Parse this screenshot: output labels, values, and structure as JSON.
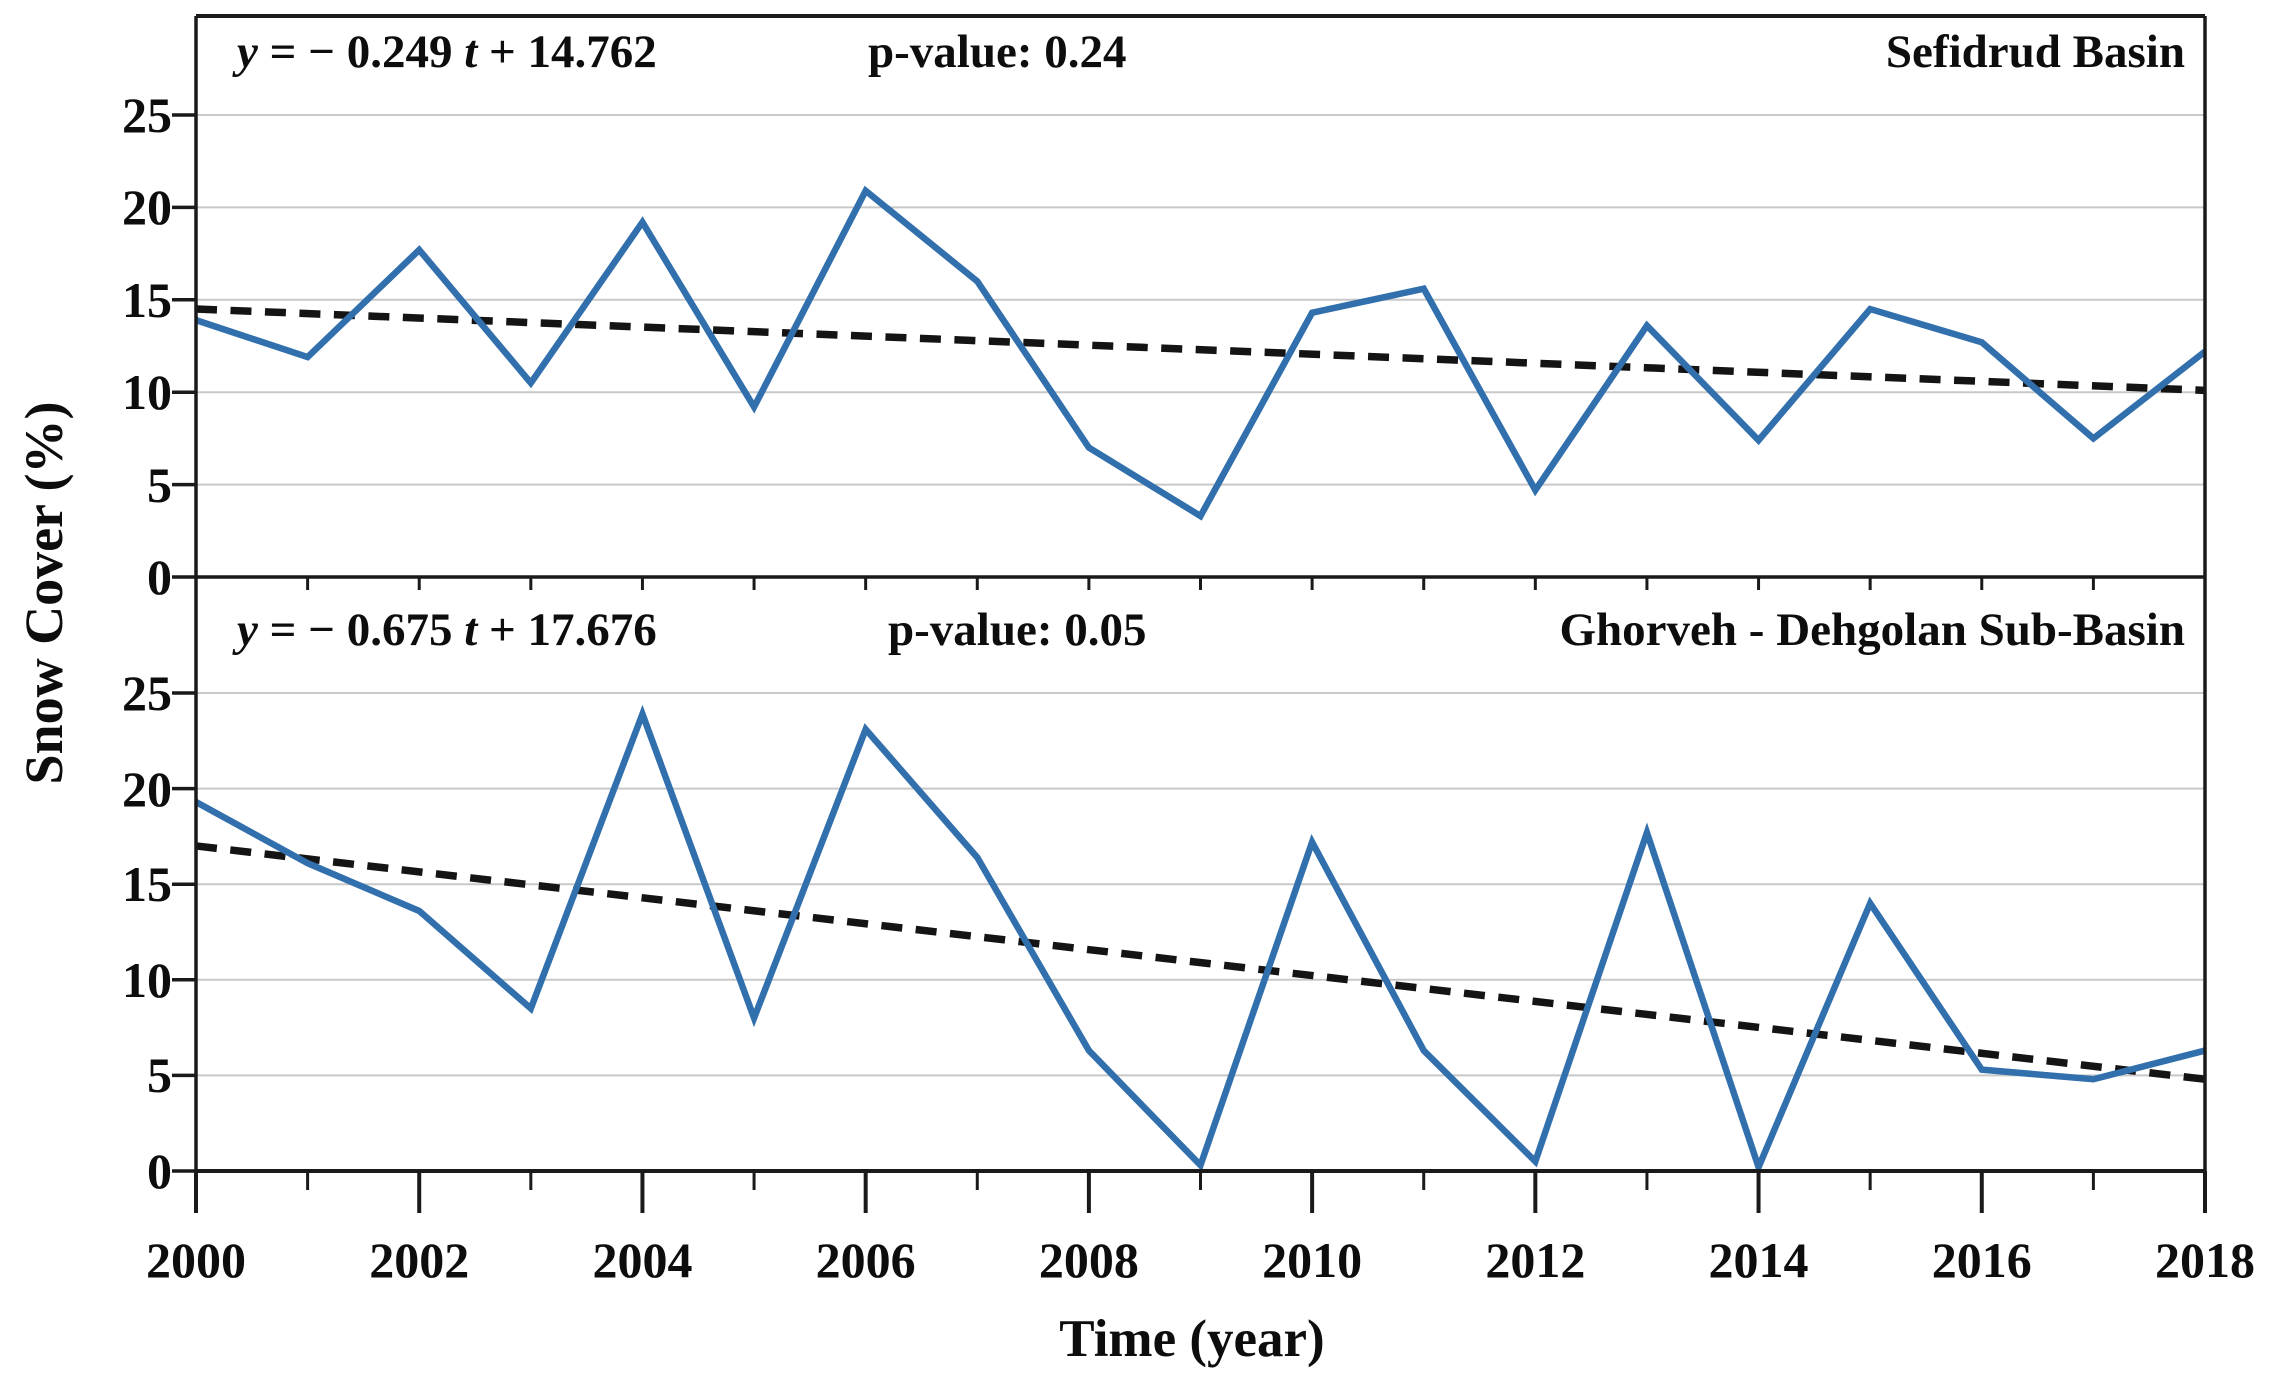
{
  "figure": {
    "ylabel": "Snow Cover (%)",
    "xlabel": "Time (year)",
    "colors": {
      "series": "#316fad",
      "trend": "#141414",
      "grid": "#c8c8c8",
      "axis": "#1a1a1a",
      "text": "#0d0d0d",
      "background": "#ffffff"
    }
  },
  "x_axis": {
    "range": [
      2000,
      2018
    ],
    "years": [
      2000,
      2001,
      2002,
      2003,
      2004,
      2005,
      2006,
      2007,
      2008,
      2009,
      2010,
      2011,
      2012,
      2013,
      2014,
      2015,
      2016,
      2017,
      2018
    ],
    "tick_labels": [
      2000,
      2002,
      2004,
      2006,
      2008,
      2010,
      2012,
      2014,
      2016,
      2018
    ]
  },
  "y_axis": {
    "ticks": [
      0,
      5,
      10,
      15,
      20,
      25
    ]
  },
  "chart_data": [
    {
      "type": "line",
      "title": "Sefidrud Basin",
      "equation_text": "y = − 0.249 t + 14.762",
      "equation": {
        "y": "y",
        "a": " = − 0.249 ",
        "t": "t",
        "b": " + 14.762"
      },
      "p_value_label": "p-value: 0.24",
      "p_value": 0.24,
      "slope": -0.249,
      "intercept": 14.762,
      "x": [
        2000,
        2001,
        2002,
        2003,
        2004,
        2005,
        2006,
        2007,
        2008,
        2009,
        2010,
        2011,
        2012,
        2013,
        2014,
        2015,
        2016,
        2017,
        2018
      ],
      "values": [
        13.9,
        11.9,
        17.7,
        10.5,
        19.2,
        9.2,
        20.9,
        16.0,
        7.0,
        3.3,
        14.3,
        15.6,
        4.7,
        13.6,
        7.4,
        14.5,
        12.7,
        7.5,
        12.2
      ],
      "trend": {
        "start": 14.5,
        "end": 10.1
      },
      "ylim": [
        0,
        30
      ],
      "gridlines": [
        5,
        10,
        15,
        20,
        25
      ]
    },
    {
      "type": "line",
      "title": "Ghorveh - Dehgolan Sub-Basin",
      "equation_text": "y = − 0.675 t + 17.676",
      "equation": {
        "y": "y",
        "a": " = − 0.675 ",
        "t": "t",
        "b": " + 17.676"
      },
      "p_value_label": "p-value: 0.05",
      "p_value": 0.05,
      "slope": -0.675,
      "intercept": 17.676,
      "x": [
        2000,
        2001,
        2002,
        2003,
        2004,
        2005,
        2006,
        2007,
        2008,
        2009,
        2010,
        2011,
        2012,
        2013,
        2014,
        2015,
        2016,
        2017,
        2018
      ],
      "values": [
        19.3,
        16.1,
        13.6,
        8.5,
        23.9,
        8.0,
        23.1,
        16.4,
        6.3,
        0.3,
        17.2,
        6.3,
        0.5,
        17.7,
        0.2,
        14.0,
        5.3,
        4.8,
        6.3
      ],
      "trend": {
        "start": 17.0,
        "end": 4.8
      },
      "ylim": [
        0,
        31
      ],
      "gridlines": [
        5,
        10,
        15,
        20,
        25
      ]
    }
  ]
}
